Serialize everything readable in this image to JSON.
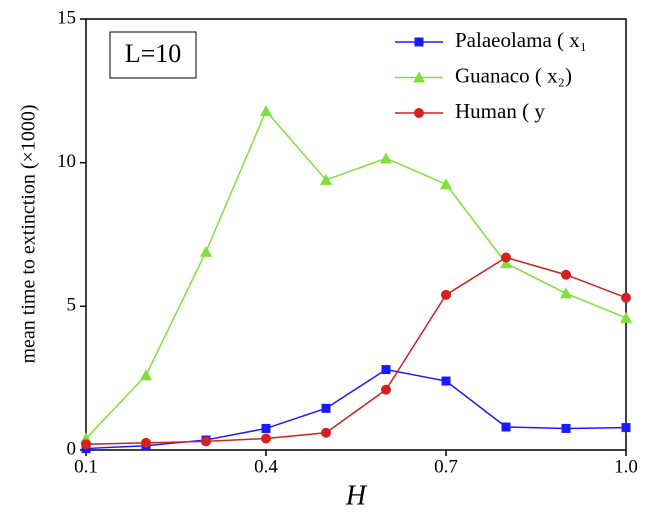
{
  "chart_data": {
    "type": "line",
    "annotation": "L=10",
    "xlabel": "H",
    "ylabel": "mean time to extinction (×1000)",
    "x": [
      0.1,
      0.2,
      0.3,
      0.4,
      0.5,
      0.6,
      0.7,
      0.8,
      0.9,
      1.0
    ],
    "series": [
      {
        "name": "Palaeolama ( x₁",
        "color": "#1a1aff",
        "marker": "square",
        "values": [
          0.05,
          0.15,
          0.35,
          0.75,
          1.45,
          2.8,
          2.4,
          0.8,
          0.75,
          0.78
        ]
      },
      {
        "name": "Guanaco ( x₂)",
        "color": "#7fe03c",
        "marker": "triangle",
        "values": [
          0.4,
          2.6,
          6.9,
          11.8,
          9.4,
          10.15,
          9.25,
          6.5,
          5.45,
          4.6
        ]
      },
      {
        "name": "Human ( y",
        "color": "#d42020",
        "marker": "circle",
        "values": [
          0.2,
          0.25,
          0.3,
          0.4,
          0.6,
          2.1,
          5.4,
          6.7,
          6.1,
          5.3
        ]
      }
    ],
    "xlim": [
      0.1,
      1.0
    ],
    "xticks": [
      0.1,
      0.4,
      0.7,
      {
        "value": 1.0,
        "label": "1.0"
      }
    ],
    "ylim": [
      0,
      15
    ],
    "yticks": [
      0,
      5,
      10,
      15
    ],
    "legend": "upper-right"
  }
}
